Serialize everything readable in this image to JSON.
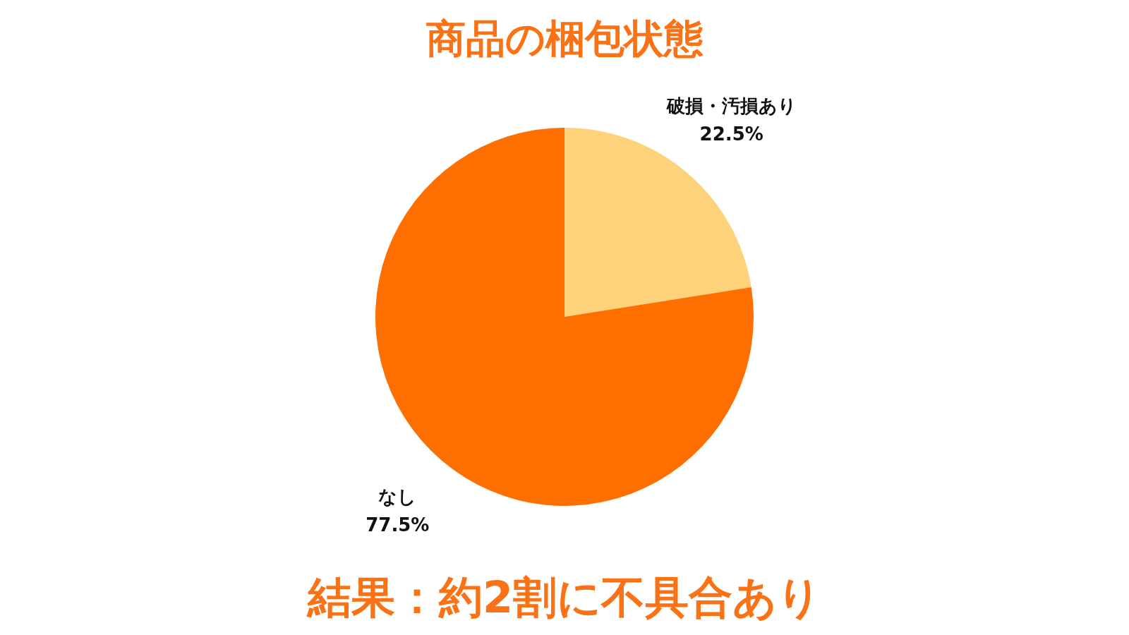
{
  "chart_data": {
    "type": "pie",
    "title": "商品の梱包状態",
    "categories": [
      "破損・汚損あり",
      "なし"
    ],
    "values": [
      22.5,
      77.5
    ],
    "colors": [
      "#fdd27a",
      "#ff6f00"
    ],
    "value_labels": [
      "22.5%",
      "77.5%"
    ],
    "legend": false,
    "annotations": [
      "結果：約2割に不具合あり"
    ]
  }
}
